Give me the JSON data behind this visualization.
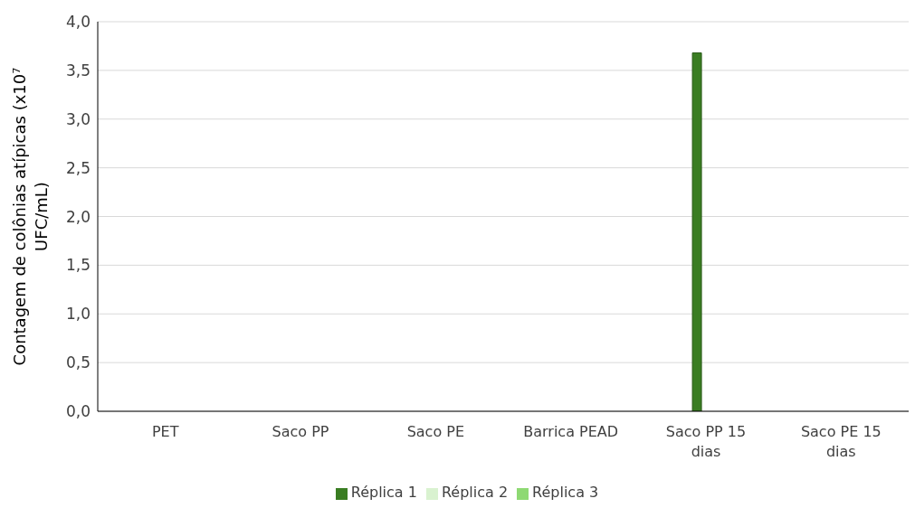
{
  "chart_data": {
    "type": "bar",
    "ylabel": "Contagem de colônias atípicas (x10⁷ UFC/mL)",
    "categories": [
      "PET",
      "Saco PP",
      "Saco PE",
      "Barrica PEAD",
      "Saco PP 15 dias",
      "Saco PE 15 dias"
    ],
    "series": [
      {
        "name": "Réplica 1",
        "color": "#3a7d22",
        "values": [
          0,
          0,
          0,
          0,
          3.68,
          0
        ]
      },
      {
        "name": "Réplica 2",
        "color": "#d9f2d0",
        "values": [
          0,
          0,
          0,
          0,
          0,
          0
        ]
      },
      {
        "name": "Réplica 3",
        "color": "#8ed973",
        "values": [
          0,
          0,
          0,
          0,
          0,
          0
        ]
      }
    ],
    "ylim": [
      0,
      4
    ],
    "yticks": [
      {
        "value": 0,
        "label": "0,0"
      },
      {
        "value": 0.5,
        "label": "0,5"
      },
      {
        "value": 1,
        "label": "1,0"
      },
      {
        "value": 1.5,
        "label": "1,5"
      },
      {
        "value": 2,
        "label": "2,0"
      },
      {
        "value": 2.5,
        "label": "2,5"
      },
      {
        "value": 3,
        "label": "3,0"
      },
      {
        "value": 3.5,
        "label": "3,5"
      },
      {
        "value": 4,
        "label": "4,0"
      }
    ],
    "grid": "y",
    "legend": "bottom"
  }
}
